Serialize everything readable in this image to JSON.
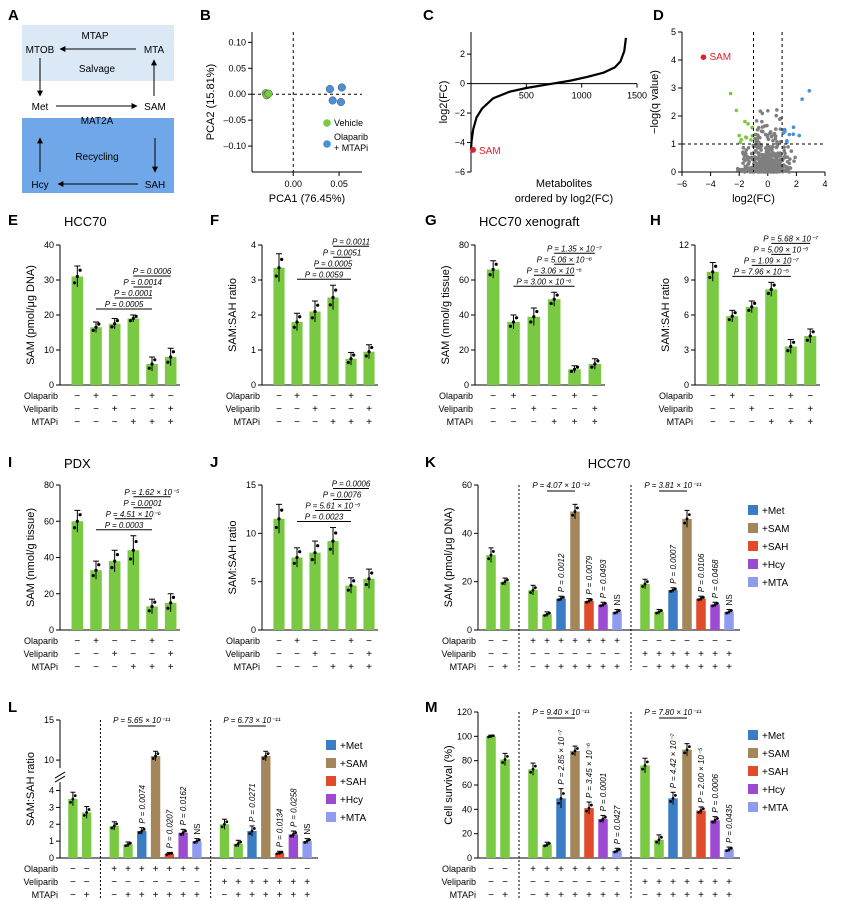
{
  "figure": {
    "colors": {
      "green": "#7ac943",
      "darkgreen": "#5aa02c",
      "blue": "#3b7dc4",
      "lightblue": "#4a90d9",
      "brown": "#a3875a",
      "red": "#e14b2a",
      "purple": "#9b4ad1",
      "lavender": "#8f9bf0",
      "gray": "#7f7f7f",
      "salvage_box": "#dbe9f7",
      "recycling_box": "#6fa7e8",
      "sam_red": "#e0212b"
    },
    "pm_labels": {
      "plus": "+",
      "minus": "−"
    },
    "trt_labels": [
      "Olaparib",
      "Veliparib",
      "MTAPi"
    ],
    "supp_legend": [
      "+Met",
      "+SAM",
      "+SAH",
      "+Hcy",
      "+MTA"
    ],
    "supp_colors": [
      "#3b7dc4",
      "#a3875a",
      "#e14b2a",
      "#9b4ad1",
      "#8f9bf0"
    ]
  },
  "panel_a": {
    "letter": "A",
    "labels": {
      "mtap": "MTAP",
      "mtob": "MTOB",
      "mta": "MTA",
      "salvage": "Salvage",
      "met": "Met",
      "sam": "SAM",
      "mat2a": "MAT2A",
      "recycling": "Recycling",
      "hcy": "Hcy",
      "sah": "SAH"
    }
  },
  "panel_b": {
    "letter": "B",
    "chart_data": {
      "type": "scatter",
      "xlabel": "PCA1 (76.45%)",
      "ylabel": "PCA2 (15.81%)",
      "xlim": [
        -0.045,
        0.075
      ],
      "ylim": [
        -0.15,
        0.12
      ],
      "xticks": [
        0.0,
        0.05
      ],
      "xtick_labels": [
        "0.00",
        "0.05"
      ],
      "yticks": [
        -0.1,
        -0.05,
        0.0,
        0.05,
        0.1
      ],
      "ytick_labels": [
        "–0.10",
        "–0.05",
        "0.00",
        "0.05",
        "0.10"
      ],
      "series": [
        {
          "name": "Vehicle",
          "color": "#7ac943",
          "points": [
            [
              -0.03,
              0.002
            ],
            [
              -0.028,
              0.0
            ],
            [
              -0.029,
              -0.002
            ],
            [
              -0.027,
              0.001
            ]
          ]
        },
        {
          "name": "Olaparib\n+ MTAPi",
          "color": "#4a90d9",
          "points": [
            [
              0.04,
              0.01
            ],
            [
              0.053,
              0.013
            ],
            [
              0.043,
              -0.012
            ],
            [
              0.052,
              -0.015
            ]
          ]
        }
      ],
      "legend": [
        "Vehicle",
        "Olaparib",
        "+ MTAPi"
      ]
    }
  },
  "panel_c": {
    "letter": "C",
    "chart_data": {
      "type": "line",
      "xlabel": "Metabolites",
      "xlabel2": "ordered by log2(FC)",
      "ylabel": "log2(FC)",
      "xlim": [
        0,
        1500
      ],
      "ylim": [
        -6,
        3.5
      ],
      "xticks": [
        500,
        1000,
        1500
      ],
      "xtick_labels": [
        "500",
        "1000",
        "1500"
      ],
      "yticks": [
        -6,
        -4,
        -2,
        0,
        2
      ],
      "ytick_labels": [
        "−6",
        "−4",
        "−2",
        "0",
        "2"
      ],
      "curve": [
        [
          0,
          -4.5
        ],
        [
          5,
          -3.9
        ],
        [
          20,
          -3.1
        ],
        [
          50,
          -2.3
        ],
        [
          100,
          -1.7
        ],
        [
          200,
          -1.0
        ],
        [
          350,
          -0.55
        ],
        [
          500,
          -0.3
        ],
        [
          700,
          -0.05
        ],
        [
          900,
          0.2
        ],
        [
          1050,
          0.45
        ],
        [
          1200,
          0.75
        ],
        [
          1300,
          1.1
        ],
        [
          1350,
          1.5
        ],
        [
          1385,
          2.2
        ],
        [
          1400,
          3.1
        ]
      ],
      "highlight": {
        "label": "SAM",
        "x": 0,
        "y": -4.5
      }
    }
  },
  "panel_d": {
    "letter": "D",
    "chart_data": {
      "type": "scatter",
      "xlabel": "log2(FC)",
      "ylabel": "−log(q value)",
      "xlim": [
        -6,
        4
      ],
      "ylim": [
        0,
        5
      ],
      "xticks": [
        -6,
        -4,
        -2,
        0,
        2,
        4
      ],
      "xtick_labels": [
        "−6",
        "−4",
        "−2",
        "0",
        "2",
        "4"
      ],
      "yticks": [
        0,
        1,
        2,
        3,
        4,
        5
      ],
      "ytick_labels": [
        "0",
        "1",
        "2",
        "3",
        "4",
        "5"
      ],
      "thresholds": {
        "x": [
          -1,
          1
        ],
        "y": 1
      },
      "highlight": {
        "label": "SAM",
        "x": -4.5,
        "y": 4.1
      }
    }
  },
  "panel_e": {
    "letter": "E",
    "subtitle": "HCC70",
    "chart_data": {
      "type": "bar",
      "ylabel": "SAM (pmol/μg DNA)",
      "ylim": [
        0,
        40
      ],
      "yticks": [
        0,
        10,
        20,
        30,
        40
      ],
      "values": [
        31,
        16.5,
        17.5,
        19,
        6,
        8
      ],
      "err": [
        3,
        1.5,
        1.5,
        1,
        2,
        2.5
      ],
      "rows": [
        [
          "−",
          "+",
          "−",
          "−",
          "+",
          "−"
        ],
        [
          "−",
          "−",
          "+",
          "−",
          "−",
          "+"
        ],
        [
          "−",
          "−",
          "−",
          "+",
          "+",
          "+"
        ]
      ],
      "brackets": [
        {
          "from": 1,
          "to": 4,
          "label": "P = 0.0005"
        },
        {
          "from": 2,
          "to": 4,
          "label": "P = 0.0001"
        },
        {
          "from": 3,
          "to": 4,
          "label": "P = 0.0014"
        },
        {
          "from": 3,
          "to": 5,
          "label": "P = 0.0006"
        }
      ]
    }
  },
  "panel_f": {
    "letter": "F",
    "chart_data": {
      "type": "bar",
      "ylabel": "SAM:SAH ratio",
      "ylim": [
        0,
        4
      ],
      "yticks": [
        0,
        1,
        2,
        3,
        4
      ],
      "values": [
        3.35,
        1.8,
        2.1,
        2.5,
        0.75,
        0.95
      ],
      "err": [
        0.4,
        0.25,
        0.3,
        0.35,
        0.18,
        0.2
      ],
      "rows": [
        [
          "−",
          "+",
          "−",
          "−",
          "+",
          "−"
        ],
        [
          "−",
          "−",
          "+",
          "−",
          "−",
          "+"
        ],
        [
          "−",
          "−",
          "−",
          "+",
          "+",
          "+"
        ]
      ],
      "brackets": [
        {
          "from": 1,
          "to": 4,
          "label": "P = 0.0059"
        },
        {
          "from": 2,
          "to": 4,
          "label": "P = 0.0005"
        },
        {
          "from": 3,
          "to": 4,
          "label": "P = 0.0051"
        },
        {
          "from": 3,
          "to": 5,
          "label": "P = 0.0011"
        }
      ]
    }
  },
  "panel_g": {
    "letter": "G",
    "subtitle": "HCC70 xenograft",
    "chart_data": {
      "type": "bar",
      "ylabel": "SAM (nmol/g tissue)",
      "ylim": [
        0,
        80
      ],
      "yticks": [
        0,
        20,
        40,
        60,
        80
      ],
      "values": [
        66,
        36,
        39,
        49,
        9,
        12
      ],
      "err": [
        5,
        4,
        5,
        4,
        2,
        3
      ],
      "rows": [
        [
          "−",
          "+",
          "−",
          "−",
          "+",
          "−"
        ],
        [
          "−",
          "−",
          "+",
          "−",
          "−",
          "+"
        ],
        [
          "−",
          "−",
          "−",
          "+",
          "+",
          "+"
        ]
      ],
      "brackets": [
        {
          "from": 1,
          "to": 4,
          "label": "P = 3.00 × 10⁻⁶"
        },
        {
          "from": 2,
          "to": 4,
          "label": "P = 3.06 × 10⁻⁶"
        },
        {
          "from": 3,
          "to": 4,
          "label": "P = 5.06 × 10⁻⁶"
        },
        {
          "from": 3,
          "to": 5,
          "label": "P = 1.35 × 10⁻⁷"
        }
      ]
    }
  },
  "panel_h": {
    "letter": "H",
    "chart_data": {
      "type": "bar",
      "ylabel": "SAM:SAH ratio",
      "ylim": [
        0,
        12
      ],
      "yticks": [
        0,
        3,
        6,
        9,
        12
      ],
      "values": [
        9.7,
        5.9,
        6.7,
        8.2,
        3.3,
        4.2
      ],
      "err": [
        0.8,
        0.5,
        0.5,
        0.6,
        0.6,
        0.6
      ],
      "rows": [
        [
          "−",
          "+",
          "−",
          "−",
          "+",
          "−"
        ],
        [
          "−",
          "−",
          "+",
          "−",
          "−",
          "+"
        ],
        [
          "−",
          "−",
          "−",
          "+",
          "+",
          "+"
        ]
      ],
      "brackets": [
        {
          "from": 1,
          "to": 4,
          "label": "P = 7.96 × 10⁻⁵"
        },
        {
          "from": 2,
          "to": 4,
          "label": "P = 1.09 × 10⁻⁷"
        },
        {
          "from": 3,
          "to": 4,
          "label": "P = 5.09 × 10⁻⁵"
        },
        {
          "from": 3,
          "to": 5,
          "label": "P = 5.68 × 10⁻⁷"
        }
      ]
    }
  },
  "panel_i": {
    "letter": "I",
    "subtitle": "PDX",
    "chart_data": {
      "type": "bar",
      "ylabel": "SAM (nmol/g tissue)",
      "ylim": [
        0,
        80
      ],
      "yticks": [
        0,
        20,
        40,
        60,
        80
      ],
      "values": [
        60,
        33,
        38,
        44,
        13,
        15
      ],
      "err": [
        6,
        5,
        6,
        8,
        4,
        5
      ],
      "rows": [
        [
          "−",
          "+",
          "−",
          "−",
          "+",
          "−"
        ],
        [
          "−",
          "−",
          "+",
          "−",
          "−",
          "+"
        ],
        [
          "−",
          "−",
          "−",
          "+",
          "+",
          "+"
        ]
      ],
      "brackets": [
        {
          "from": 1,
          "to": 4,
          "label": "P = 0.0003"
        },
        {
          "from": 2,
          "to": 4,
          "label": "P = 4.51 × 10⁻⁶"
        },
        {
          "from": 3,
          "to": 4,
          "label": "P = 0.0001"
        },
        {
          "from": 3,
          "to": 5,
          "label": "P = 1.62 × 10⁻⁵"
        }
      ]
    }
  },
  "panel_j": {
    "letter": "J",
    "chart_data": {
      "type": "bar",
      "ylabel": "SAM:SAH ratio",
      "ylim": [
        0,
        15
      ],
      "yticks": [
        0,
        5,
        10,
        15
      ],
      "values": [
        11.5,
        7.5,
        8,
        9.2,
        4.6,
        5.3
      ],
      "err": [
        1.5,
        1,
        1.2,
        1.4,
        0.8,
        1
      ],
      "rows": [
        [
          "−",
          "+",
          "−",
          "−",
          "+",
          "−"
        ],
        [
          "−",
          "−",
          "+",
          "−",
          "−",
          "+"
        ],
        [
          "−",
          "−",
          "−",
          "+",
          "+",
          "+"
        ]
      ],
      "brackets": [
        {
          "from": 1,
          "to": 4,
          "label": "P = 0.0023"
        },
        {
          "from": 2,
          "to": 4,
          "label": "P = 5.61 × 10⁻⁵"
        },
        {
          "from": 3,
          "to": 4,
          "label": "P = 0.0076"
        },
        {
          "from": 3,
          "to": 5,
          "label": "P = 0.0006"
        }
      ]
    }
  },
  "panel_k": {
    "letter": "K",
    "subtitle": "HCC70",
    "chart_data": {
      "type": "bar",
      "ylabel": "SAM (pmol/μg DNA)",
      "ylim": [
        0,
        60
      ],
      "yticks": [
        0,
        20,
        40,
        60
      ],
      "values": [
        31,
        20,
        16.5,
        6.5,
        13,
        49,
        12,
        10.5,
        7.5,
        19,
        7.5,
        16.5,
        46,
        13,
        10.5,
        7.5
      ],
      "err": [
        3,
        1.5,
        2,
        1,
        1,
        3,
        1,
        1,
        1,
        2,
        1,
        1,
        3.5,
        1,
        1,
        1
      ],
      "colors": [
        0,
        0,
        0,
        0,
        1,
        2,
        3,
        4,
        5,
        0,
        0,
        1,
        2,
        3,
        4,
        5
      ],
      "pvals": [
        "",
        "",
        "",
        "",
        "P = 0.0012",
        "",
        "P = 0.0079",
        "P = 0.0493",
        "NS",
        "",
        "",
        "P = 0.0007",
        "",
        "P = 0.0106",
        "P = 0.0468",
        "NS"
      ],
      "rows": [
        [
          "−",
          "−",
          "+",
          "+",
          "+",
          "+",
          "+",
          "+",
          "+",
          "−",
          "−",
          "−",
          "−",
          "−",
          "−",
          "−"
        ],
        [
          "−",
          "−",
          "−",
          "−",
          "−",
          "−",
          "−",
          "−",
          "−",
          "+",
          "+",
          "+",
          "+",
          "+",
          "+",
          "+"
        ],
        [
          "−",
          "+",
          "−",
          "+",
          "+",
          "+",
          "+",
          "+",
          "+",
          "−",
          "+",
          "+",
          "+",
          "+",
          "+",
          "+"
        ]
      ],
      "top_brackets": [
        {
          "from": 3,
          "to": 5,
          "label": "P = 4.07 × 10⁻¹²"
        },
        {
          "from": 10,
          "to": 12,
          "label": "P = 3.81 × 10⁻¹¹"
        }
      ]
    }
  },
  "panel_l": {
    "letter": "L",
    "chart_data": {
      "type": "bar",
      "ylabel": "SAM:SAH ratio",
      "values": [
        3.5,
        2.7,
        1.9,
        0.8,
        1.6,
        10.5,
        0.25,
        1.5,
        1.0,
        2.0,
        0.85,
        1.6,
        10.5,
        0.3,
        1.4,
        1.0
      ],
      "err": [
        0.4,
        0.35,
        0.25,
        0.15,
        0.2,
        0.6,
        0.08,
        0.2,
        0.15,
        0.3,
        0.2,
        0.3,
        0.6,
        0.1,
        0.2,
        0.15
      ],
      "colors": [
        0,
        0,
        0,
        0,
        1,
        2,
        3,
        4,
        5,
        0,
        0,
        1,
        2,
        3,
        4,
        5
      ],
      "pvals": [
        "",
        "",
        "",
        "",
        "P = 0.0074",
        "",
        "P = 0.0207",
        "P = 0.0162",
        "NS",
        "",
        "",
        "P = 0.0271",
        "",
        "P = 0.0134",
        "P = 0.0258",
        "NS"
      ],
      "lower_ticks": [
        0,
        1,
        2,
        3,
        4
      ],
      "upper_ticks": [
        10,
        15
      ],
      "rows": [
        [
          "−",
          "−",
          "+",
          "+",
          "+",
          "+",
          "+",
          "+",
          "+",
          "−",
          "−",
          "−",
          "−",
          "−",
          "−",
          "−"
        ],
        [
          "−",
          "−",
          "−",
          "−",
          "−",
          "−",
          "−",
          "−",
          "−",
          "+",
          "+",
          "+",
          "+",
          "+",
          "+",
          "+"
        ],
        [
          "−",
          "+",
          "−",
          "+",
          "+",
          "+",
          "+",
          "+",
          "+",
          "−",
          "+",
          "+",
          "+",
          "+",
          "+",
          "+"
        ]
      ],
      "top_brackets": [
        {
          "from": 3,
          "to": 5,
          "label": "P = 5.65 × 10⁻¹¹"
        },
        {
          "from": 10,
          "to": 12,
          "label": "P = 6.73 × 10⁻¹¹"
        }
      ]
    }
  },
  "panel_m": {
    "letter": "M",
    "chart_data": {
      "type": "bar",
      "ylabel": "Cell survival (%)",
      "ylim": [
        0,
        120
      ],
      "yticks": [
        0,
        20,
        40,
        60,
        80,
        100,
        120
      ],
      "values": [
        100,
        81,
        73,
        11,
        49,
        88,
        41,
        32,
        6,
        76,
        15,
        49,
        89,
        39,
        31,
        7
      ],
      "err": [
        1,
        5,
        5,
        2,
        8,
        4,
        5,
        3,
        2,
        6,
        4,
        5,
        5,
        3,
        3,
        2
      ],
      "colors": [
        0,
        0,
        0,
        0,
        1,
        2,
        3,
        4,
        5,
        0,
        0,
        1,
        2,
        3,
        4,
        5
      ],
      "pvals": [
        "",
        "",
        "",
        "",
        "P = 2.85 × 10⁻⁷",
        "",
        "P = 3.45 × 10⁻⁶",
        "P = 0.0001",
        "P = 0.0427",
        "",
        "",
        "P = 4.42 × 10⁻⁷",
        "",
        "P = 2.00 × 10⁻⁵",
        "P = 0.0006",
        "P = 0.0435"
      ],
      "rows": [
        [
          "−",
          "−",
          "+",
          "+",
          "+",
          "+",
          "+",
          "+",
          "+",
          "−",
          "−",
          "−",
          "−",
          "−",
          "−",
          "−"
        ],
        [
          "−",
          "−",
          "−",
          "−",
          "−",
          "−",
          "−",
          "−",
          "−",
          "+",
          "+",
          "+",
          "+",
          "+",
          "+",
          "+"
        ],
        [
          "−",
          "+",
          "−",
          "+",
          "+",
          "+",
          "+",
          "+",
          "+",
          "−",
          "+",
          "+",
          "+",
          "+",
          "+",
          "+"
        ]
      ],
      "top_brackets": [
        {
          "from": 3,
          "to": 5,
          "label": "P = 9.40 × 10⁻¹¹"
        },
        {
          "from": 10,
          "to": 12,
          "label": "P = 7.80 × 10⁻¹¹"
        }
      ]
    }
  }
}
